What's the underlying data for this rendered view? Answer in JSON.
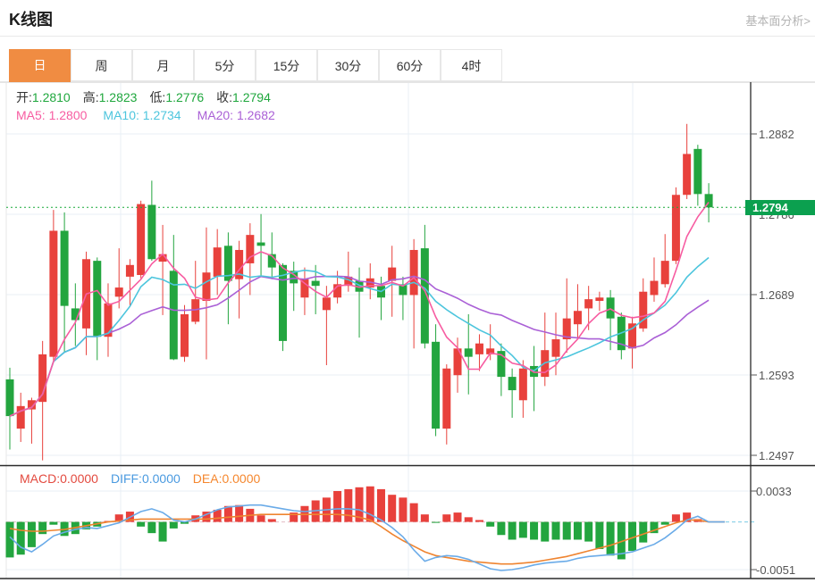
{
  "header": {
    "title": "K线图",
    "analysis_link": "基本面分析>"
  },
  "tabs": {
    "items": [
      "日",
      "周",
      "月",
      "5分",
      "15分",
      "30分",
      "60分",
      "4时"
    ],
    "active_index": 0
  },
  "ohlc_legend": {
    "open_label": "开:",
    "open_value": "1.2810",
    "high_label": "高:",
    "high_value": "1.2823",
    "low_label": "低:",
    "low_value": "1.2776",
    "close_label": "收:",
    "close_value": "1.2794"
  },
  "ma_legend": {
    "ma5_label": "MA5:",
    "ma5_value": "1.2800",
    "ma10_label": "MA10:",
    "ma10_value": "1.2734",
    "ma20_label": "MA20:",
    "ma20_value": "1.2682"
  },
  "macd_legend": {
    "macd_label": "MACD:",
    "macd_value": "0.0000",
    "diff_label": "DIFF:",
    "diff_value": "0.0000",
    "dea_label": "DEA:",
    "dea_value": "0.0000"
  },
  "price_axis": {
    "ticks": [
      "1.2882",
      "1.2786",
      "1.2689",
      "1.2593",
      "1.2497"
    ],
    "current_price": "1.2794"
  },
  "macd_axis": {
    "ticks": [
      "0.0033",
      "-0.0051"
    ]
  },
  "colors": {
    "up": "#e8413c",
    "down": "#23a53f",
    "badge": "#0ba04f",
    "ma5": "#f75ca1",
    "ma10": "#4cc5dd",
    "ma20": "#aa60d6",
    "diff_line": "#6aabe8",
    "dea_line": "#ef8430",
    "tab_active": "#f08c42",
    "current_line": "#18a938",
    "value_green": "#1fa73d",
    "macd_text": "#e34a3f",
    "diff_text": "#4a9ae0",
    "dea_text": "#f5872e",
    "grid": "#e9eff6",
    "axis_dark": "#2a2a2a",
    "zero_dash": "#e2bcc4",
    "cyan_dash": "#8ad4ea"
  },
  "chart_data": [
    {
      "type": "candlestick",
      "title": "K线图",
      "period": "日",
      "legend": {
        "open": 1.281,
        "high": 1.2823,
        "low": 1.2776,
        "close": 1.2794
      },
      "y_ticks": [
        1.2882,
        1.2786,
        1.2689,
        1.2593,
        1.2497
      ],
      "ylim": [
        1.2472,
        1.2944
      ],
      "current_price": 1.2794,
      "ma_periods": [
        5,
        10,
        20
      ],
      "ma_last": {
        "MA5": 1.28,
        "MA10": 1.2734,
        "MA20": 1.2682
      },
      "ohlc": [
        [
          1.2588,
          1.2602,
          1.2504,
          1.2544
        ],
        [
          1.2529,
          1.2572,
          1.2513,
          1.2556
        ],
        [
          1.2552,
          1.2566,
          1.2511,
          1.2563
        ],
        [
          1.2561,
          1.2634,
          1.2491,
          1.2618
        ],
        [
          1.2615,
          1.2791,
          1.2609,
          1.2766
        ],
        [
          1.2766,
          1.2788,
          1.262,
          1.2676
        ],
        [
          1.2673,
          1.2703,
          1.2628,
          1.2659
        ],
        [
          1.2649,
          1.2741,
          1.2617,
          1.2732
        ],
        [
          1.273,
          1.2734,
          1.2611,
          1.2639
        ],
        [
          1.2639,
          1.2703,
          1.2615,
          1.2679
        ],
        [
          1.2687,
          1.2745,
          1.2673,
          1.2698
        ],
        [
          1.2711,
          1.2732,
          1.2676,
          1.2725
        ],
        [
          1.2713,
          1.2802,
          1.2709,
          1.2798
        ],
        [
          1.2797,
          1.2826,
          1.273,
          1.2732
        ],
        [
          1.2729,
          1.2773,
          1.2665,
          1.2738
        ],
        [
          1.2718,
          1.2761,
          1.2611,
          1.2612
        ],
        [
          1.2615,
          1.2677,
          1.2609,
          1.2666
        ],
        [
          1.2657,
          1.273,
          1.2654,
          1.2684
        ],
        [
          1.2682,
          1.277,
          1.2612,
          1.2716
        ],
        [
          1.2711,
          1.2768,
          1.2689,
          1.2746
        ],
        [
          1.2748,
          1.2764,
          1.2654,
          1.2706
        ],
        [
          1.2708,
          1.2754,
          1.2661,
          1.2743
        ],
        [
          1.2727,
          1.2775,
          1.2689,
          1.2761
        ],
        [
          1.2752,
          1.2786,
          1.2711,
          1.2748
        ],
        [
          1.2738,
          1.2764,
          1.2708,
          1.2722
        ],
        [
          1.2725,
          1.2727,
          1.2622,
          1.2634
        ],
        [
          1.2718,
          1.2729,
          1.267,
          1.2703
        ],
        [
          1.2686,
          1.2722,
          1.2665,
          1.2708
        ],
        [
          1.2706,
          1.2725,
          1.2666,
          1.27
        ],
        [
          1.2671,
          1.27,
          1.2605,
          1.2686
        ],
        [
          1.2686,
          1.2718,
          1.2679,
          1.2702
        ],
        [
          1.27,
          1.2741,
          1.2693,
          1.2711
        ],
        [
          1.2706,
          1.2722,
          1.2638,
          1.2693
        ],
        [
          1.2698,
          1.2727,
          1.2684,
          1.2709
        ],
        [
          1.27,
          1.2711,
          1.2659,
          1.2686
        ],
        [
          1.2706,
          1.2748,
          1.2663,
          1.2722
        ],
        [
          1.2702,
          1.2711,
          1.2659,
          1.2689
        ],
        [
          1.2689,
          1.2756,
          1.2625,
          1.2743
        ],
        [
          1.2745,
          1.2773,
          1.2625,
          1.2631
        ],
        [
          1.2633,
          1.2654,
          1.252,
          1.2529
        ],
        [
          1.2529,
          1.2606,
          1.251,
          1.2601
        ],
        [
          1.2593,
          1.2638,
          1.2572,
          1.2625
        ],
        [
          1.2625,
          1.2666,
          1.257,
          1.2615
        ],
        [
          1.2618,
          1.2642,
          1.2598,
          1.2631
        ],
        [
          1.2618,
          1.2654,
          1.2611,
          1.2625
        ],
        [
          1.2622,
          1.2631,
          1.2568,
          1.2591
        ],
        [
          1.2591,
          1.2601,
          1.2542,
          1.2575
        ],
        [
          1.2563,
          1.2611,
          1.2542,
          1.2601
        ],
        [
          1.2604,
          1.2628,
          1.255,
          1.2591
        ],
        [
          1.2591,
          1.2668,
          1.258,
          1.2623
        ],
        [
          1.2615,
          1.2668,
          1.2593,
          1.2636
        ],
        [
          1.2636,
          1.2709,
          1.262,
          1.2661
        ],
        [
          1.2654,
          1.2702,
          1.2636,
          1.267
        ],
        [
          1.2673,
          1.27,
          1.2647,
          1.2684
        ],
        [
          1.2682,
          1.2693,
          1.267,
          1.2686
        ],
        [
          1.2686,
          1.2695,
          1.2623,
          1.2661
        ],
        [
          1.2663,
          1.2668,
          1.2612,
          1.2623
        ],
        [
          1.2625,
          1.2663,
          1.2601,
          1.2655
        ],
        [
          1.2649,
          1.2709,
          1.2645,
          1.2693
        ],
        [
          1.2689,
          1.2734,
          1.2681,
          1.2706
        ],
        [
          1.2702,
          1.2762,
          1.2698,
          1.273
        ],
        [
          1.273,
          1.2818,
          1.2726,
          1.2809
        ],
        [
          1.2809,
          1.2894,
          1.2804,
          1.2858
        ],
        [
          1.2864,
          1.2869,
          1.2796,
          1.281
        ],
        [
          1.281,
          1.2823,
          1.2776,
          1.2794
        ]
      ]
    },
    {
      "type": "macd",
      "legend": {
        "MACD": 0.0,
        "DIFF": 0.0,
        "DEA": 0.0
      },
      "y_ticks": [
        0.0033,
        -0.0051
      ],
      "macd": [
        -0.0038,
        -0.0035,
        -0.0027,
        -0.0013,
        -0.0003,
        -0.0015,
        -0.0013,
        -0.0008,
        -0.0005,
        0.0001,
        0.0008,
        0.0011,
        -0.0005,
        -0.0012,
        -0.0021,
        -0.0007,
        -0.0002,
        0.0007,
        0.0011,
        0.0013,
        0.0017,
        0.0018,
        0.0014,
        0.0007,
        0.0003,
        0.0,
        0.001,
        0.0017,
        0.0023,
        0.0026,
        0.0033,
        0.0035,
        0.0037,
        0.0038,
        0.0035,
        0.0029,
        0.0026,
        0.002,
        0.0008,
        -0.0001,
        0.0008,
        0.001,
        0.0005,
        0.0002,
        -0.0005,
        -0.0014,
        -0.0019,
        -0.0017,
        -0.0019,
        -0.0021,
        -0.0019,
        -0.0019,
        -0.0019,
        -0.0021,
        -0.0029,
        -0.0036,
        -0.004,
        -0.0031,
        -0.0022,
        -0.0012,
        -0.0003,
        0.0008,
        0.001,
        0.0003,
        0.0
      ],
      "diff": [
        -0.0016,
        -0.0027,
        -0.0032,
        -0.0024,
        -0.0015,
        -0.0011,
        -0.0008,
        -0.0006,
        -0.0007,
        -0.0004,
        -0.0001,
        0.0005,
        0.0011,
        0.0014,
        0.001,
        0.0002,
        0.0,
        0.0003,
        0.0008,
        0.0013,
        0.0016,
        0.0017,
        0.0018,
        0.0018,
        0.0016,
        0.0014,
        0.0012,
        0.0011,
        0.0012,
        0.0013,
        0.0014,
        0.0014,
        0.0013,
        0.0008,
        0.0002,
        -0.0006,
        -0.0016,
        -0.003,
        -0.0042,
        -0.0038,
        -0.0036,
        -0.0037,
        -0.004,
        -0.0045,
        -0.005,
        -0.0052,
        -0.0051,
        -0.0049,
        -0.0046,
        -0.0044,
        -0.0043,
        -0.0042,
        -0.0039,
        -0.0037,
        -0.0036,
        -0.0035,
        -0.0034,
        -0.0032,
        -0.0028,
        -0.0024,
        -0.0017,
        -0.0008,
        0.0002,
        0.0006,
        0.0
      ],
      "dea": [
        -0.0007,
        -0.0009,
        -0.001,
        -0.001,
        -0.0009,
        -0.0008,
        -0.0006,
        -0.0004,
        -0.0002,
        0.0,
        0.0001,
        0.0002,
        0.0003,
        0.0003,
        0.0003,
        0.0003,
        0.0003,
        0.0003,
        0.0003,
        0.0004,
        0.0005,
        0.0006,
        0.0007,
        0.0008,
        0.0008,
        0.0008,
        0.0008,
        0.0008,
        0.0008,
        0.0008,
        0.0008,
        0.0007,
        0.0005,
        0.0002,
        -0.0005,
        -0.0013,
        -0.002,
        -0.0026,
        -0.0032,
        -0.0036,
        -0.0038,
        -0.004,
        -0.0042,
        -0.0043,
        -0.0044,
        -0.0045,
        -0.0045,
        -0.0044,
        -0.0043,
        -0.0041,
        -0.0039,
        -0.0037,
        -0.0034,
        -0.0031,
        -0.0028,
        -0.0025,
        -0.0021,
        -0.0017,
        -0.0013,
        -0.0009,
        -0.0005,
        -0.0001,
        0.0002,
        0.0002,
        0.0
      ]
    }
  ]
}
